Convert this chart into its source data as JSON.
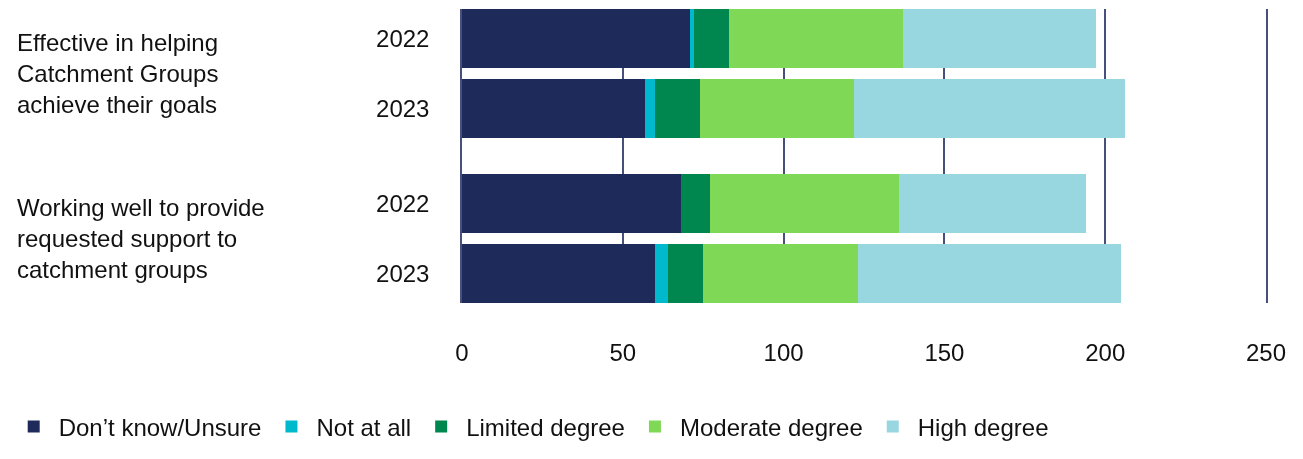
{
  "chart_data": {
    "type": "bar",
    "orientation": "horizontal",
    "stacked": true,
    "categories": [
      "2022",
      "2023",
      "2022",
      "2023"
    ],
    "series": [
      {
        "name": "Don’t know/Unsure",
        "color": "#1e2b5a",
        "values": [
          71,
          57,
          68,
          60
        ]
      },
      {
        "name": "Not at all",
        "color": "#00b9cc",
        "values": [
          1,
          3,
          0,
          4
        ]
      },
      {
        "name": "Limited degree",
        "color": "#00874f",
        "values": [
          11,
          14,
          9,
          11
        ]
      },
      {
        "name": "Moderate degree",
        "color": "#7fd957",
        "values": [
          54,
          48,
          59,
          48
        ]
      },
      {
        "name": "High degree",
        "color": "#98d6e0",
        "values": [
          60,
          84,
          58,
          82
        ]
      }
    ],
    "annotations": [
      "Effective in helping Catchment Groups achieve their goals",
      "Working well to provide requested support to catchment groups"
    ],
    "xlim": [
      0,
      250
    ],
    "xticks": [
      0,
      50,
      100,
      150,
      200,
      250
    ],
    "grid": "x",
    "legend": "bottom"
  }
}
